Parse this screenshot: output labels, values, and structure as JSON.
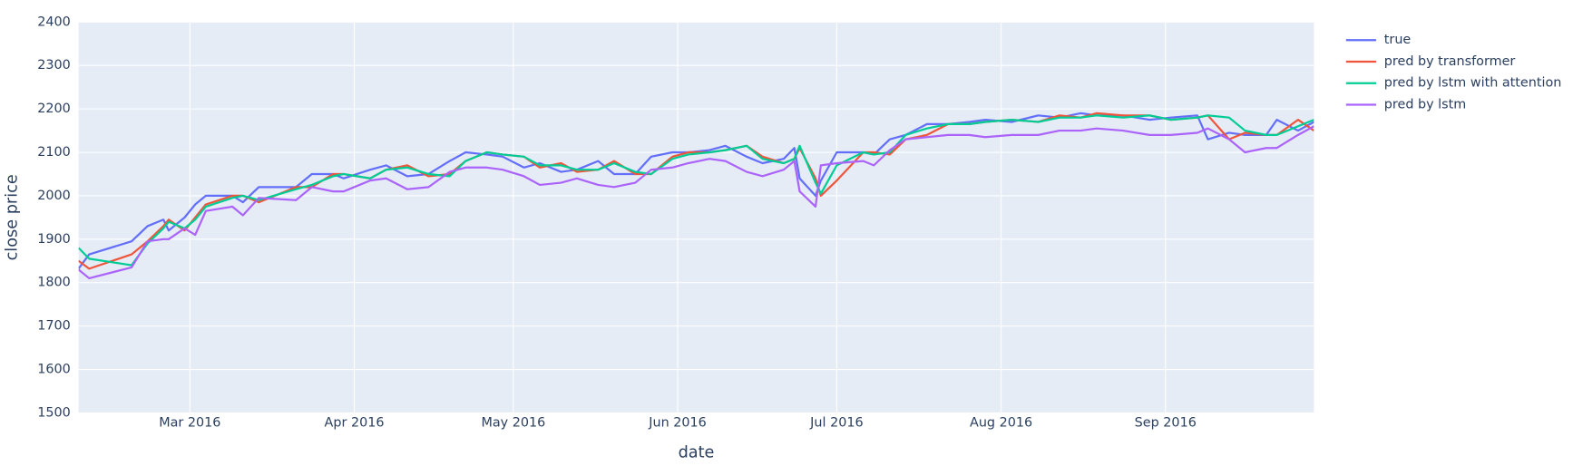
{
  "chart_data": {
    "type": "line",
    "xlabel": "date",
    "ylabel": "close price",
    "x": [
      "2016-02-09",
      "2016-02-11",
      "2016-02-19",
      "2016-02-22",
      "2016-02-25",
      "2016-02-26",
      "2016-02-29",
      "2016-03-02",
      "2016-03-04",
      "2016-03-09",
      "2016-03-11",
      "2016-03-14",
      "2016-03-21",
      "2016-03-24",
      "2016-03-28",
      "2016-03-30",
      "2016-04-04",
      "2016-04-07",
      "2016-04-11",
      "2016-04-15",
      "2016-04-19",
      "2016-04-22",
      "2016-04-26",
      "2016-04-29",
      "2016-05-03",
      "2016-05-06",
      "2016-05-10",
      "2016-05-13",
      "2016-05-17",
      "2016-05-20",
      "2016-05-24",
      "2016-05-27",
      "2016-05-31",
      "2016-06-03",
      "2016-06-07",
      "2016-06-10",
      "2016-06-14",
      "2016-06-17",
      "2016-06-21",
      "2016-06-23",
      "2016-06-24",
      "2016-06-27",
      "2016-06-28",
      "2016-07-01",
      "2016-07-06",
      "2016-07-08",
      "2016-07-11",
      "2016-07-14",
      "2016-07-18",
      "2016-07-22",
      "2016-07-26",
      "2016-07-29",
      "2016-08-03",
      "2016-08-08",
      "2016-08-12",
      "2016-08-16",
      "2016-08-19",
      "2016-08-24",
      "2016-08-29",
      "2016-09-02",
      "2016-09-07",
      "2016-09-09",
      "2016-09-13",
      "2016-09-16",
      "2016-09-20",
      "2016-09-22",
      "2016-09-26",
      "2016-09-29"
    ],
    "series": [
      {
        "name": "true",
        "color": "#636efa",
        "values": [
          1832,
          1865,
          1895,
          1930,
          1945,
          1920,
          1950,
          1980,
          2000,
          2000,
          1985,
          2020,
          2020,
          2050,
          2050,
          2040,
          2060,
          2070,
          2045,
          2050,
          2080,
          2100,
          2095,
          2090,
          2065,
          2075,
          2055,
          2060,
          2080,
          2050,
          2050,
          2090,
          2100,
          2100,
          2105,
          2115,
          2090,
          2075,
          2085,
          2110,
          2040,
          2000,
          2035,
          2100,
          2100,
          2095,
          2130,
          2140,
          2165,
          2165,
          2170,
          2175,
          2170,
          2185,
          2180,
          2190,
          2185,
          2185,
          2175,
          2180,
          2185,
          2130,
          2145,
          2140,
          2140,
          2175,
          2150,
          2170
        ]
      },
      {
        "name": "pred by transformer",
        "color": "#ef553b",
        "values": [
          1850,
          1832,
          1865,
          1895,
          1930,
          1945,
          1920,
          1950,
          1980,
          2000,
          2000,
          1985,
          2020,
          2020,
          2050,
          2050,
          2040,
          2060,
          2070,
          2045,
          2050,
          2080,
          2100,
          2095,
          2090,
          2065,
          2075,
          2055,
          2060,
          2080,
          2050,
          2050,
          2090,
          2100,
          2100,
          2105,
          2115,
          2090,
          2075,
          2085,
          2110,
          2040,
          2000,
          2035,
          2100,
          2100,
          2095,
          2130,
          2140,
          2165,
          2165,
          2170,
          2175,
          2170,
          2185,
          2180,
          2190,
          2185,
          2185,
          2175,
          2180,
          2185,
          2130,
          2145,
          2140,
          2140,
          2175,
          2150
        ]
      },
      {
        "name": "pred by lstm with attention",
        "color": "#00cc96",
        "values": [
          1880,
          1855,
          1840,
          1890,
          1925,
          1940,
          1925,
          1945,
          1975,
          1995,
          2000,
          1990,
          2015,
          2025,
          2045,
          2050,
          2040,
          2060,
          2065,
          2050,
          2045,
          2080,
          2100,
          2095,
          2090,
          2070,
          2070,
          2060,
          2060,
          2075,
          2055,
          2050,
          2085,
          2095,
          2100,
          2105,
          2115,
          2085,
          2075,
          2085,
          2115,
          2030,
          2005,
          2070,
          2100,
          2095,
          2100,
          2140,
          2155,
          2165,
          2165,
          2170,
          2175,
          2170,
          2180,
          2180,
          2185,
          2180,
          2185,
          2175,
          2180,
          2185,
          2180,
          2150,
          2140,
          2140,
          2160,
          2175
        ]
      },
      {
        "name": "pred by lstm",
        "color": "#ab63fa",
        "values": [
          1830,
          1810,
          1835,
          1895,
          1900,
          1900,
          1925,
          1910,
          1965,
          1975,
          1955,
          1995,
          1990,
          2020,
          2010,
          2010,
          2035,
          2040,
          2015,
          2020,
          2055,
          2065,
          2065,
          2060,
          2045,
          2025,
          2030,
          2040,
          2025,
          2020,
          2030,
          2060,
          2065,
          2075,
          2085,
          2080,
          2055,
          2045,
          2060,
          2080,
          2010,
          1975,
          2070,
          2075,
          2080,
          2070,
          2105,
          2130,
          2135,
          2140,
          2140,
          2135,
          2140,
          2140,
          2150,
          2150,
          2155,
          2150,
          2140,
          2140,
          2145,
          2155,
          2130,
          2100,
          2110,
          2110,
          2140,
          2160
        ]
      }
    ],
    "xlim": [
      "2016-02-09",
      "2016-09-29"
    ],
    "xticks": [
      {
        "value": "2016-03-01",
        "label": "Mar 2016"
      },
      {
        "value": "2016-04-01",
        "label": "Apr 2016"
      },
      {
        "value": "2016-05-01",
        "label": "May 2016"
      },
      {
        "value": "2016-06-01",
        "label": "Jun 2016"
      },
      {
        "value": "2016-07-01",
        "label": "Jul 2016"
      },
      {
        "value": "2016-08-01",
        "label": "Aug 2016"
      },
      {
        "value": "2016-09-01",
        "label": "Sep 2016"
      }
    ],
    "ylim": [
      1500,
      2400
    ],
    "yticks": [
      1500,
      1600,
      1700,
      1800,
      1900,
      2000,
      2100,
      2200,
      2300,
      2400
    ],
    "grid": true,
    "legend": "outside-right",
    "background": "#e5ecf6"
  }
}
